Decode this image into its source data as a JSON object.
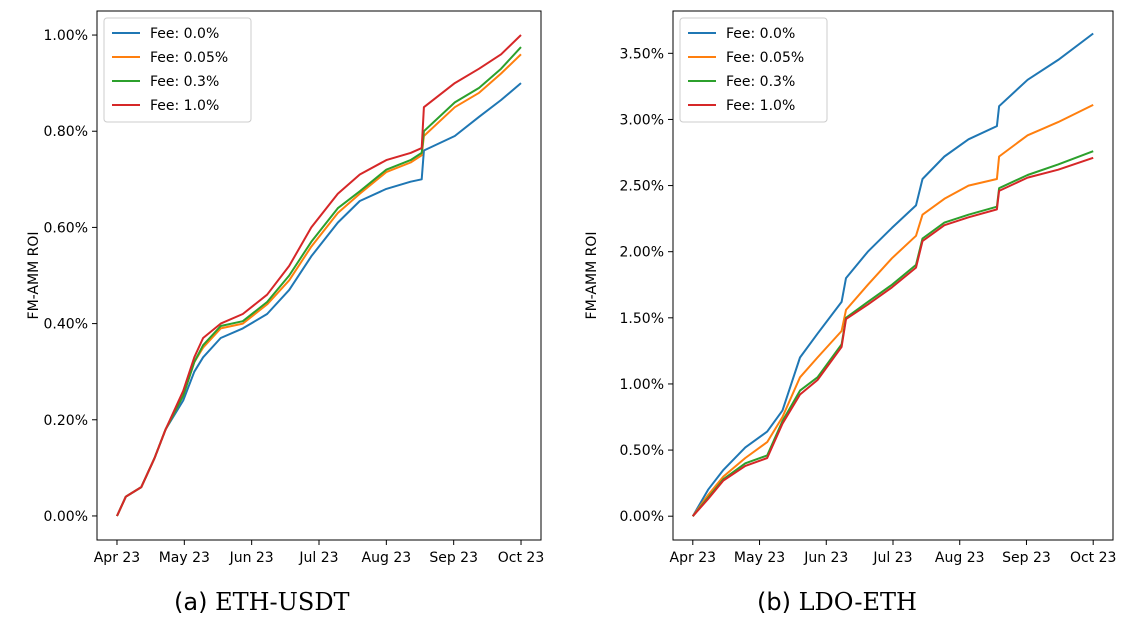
{
  "figure": {
    "captions": [
      {
        "label": "(a)",
        "text": "ETH-USDT"
      },
      {
        "label": "(b)",
        "text": "LDO-ETH"
      }
    ]
  },
  "chart_data": [
    {
      "type": "line",
      "title": "",
      "xlabel": "",
      "ylabel": "FM-AMM ROI",
      "x_ticks": [
        "Apr 23",
        "May 23",
        "Jun 23",
        "Jul 23",
        "Aug 23",
        "Sep 23",
        "Oct 23"
      ],
      "x_range": [
        "2023-04-01",
        "2023-10-01"
      ],
      "y_ticks": [
        "0.00%",
        "0.20%",
        "0.40%",
        "0.60%",
        "0.80%",
        "1.00%"
      ],
      "y_tick_values": [
        0,
        0.2,
        0.4,
        0.6,
        0.8,
        1.0
      ],
      "ylim": [
        -0.05,
        1.05
      ],
      "legend": "top-left",
      "grid": false,
      "x": [
        "2023-04-01",
        "2023-04-05",
        "2023-04-12",
        "2023-04-18",
        "2023-04-23",
        "2023-05-01",
        "2023-05-06",
        "2023-05-10",
        "2023-05-18",
        "2023-05-28",
        "2023-06-08",
        "2023-06-18",
        "2023-06-28",
        "2023-07-10",
        "2023-07-20",
        "2023-08-01",
        "2023-08-12",
        "2023-08-17",
        "2023-08-18",
        "2023-09-01",
        "2023-09-12",
        "2023-09-22",
        "2023-10-01"
      ],
      "series": [
        {
          "name": "Fee: 0.0%",
          "color": "#1f77b4",
          "values": [
            0.0,
            0.04,
            0.06,
            0.12,
            0.18,
            0.24,
            0.3,
            0.33,
            0.37,
            0.39,
            0.42,
            0.47,
            0.54,
            0.61,
            0.655,
            0.68,
            0.695,
            0.7,
            0.76,
            0.79,
            0.83,
            0.865,
            0.9
          ]
        },
        {
          "name": "Fee: 0.05%",
          "color": "#ff7f0e",
          "values": [
            0.0,
            0.04,
            0.06,
            0.12,
            0.18,
            0.25,
            0.32,
            0.35,
            0.39,
            0.4,
            0.44,
            0.49,
            0.56,
            0.63,
            0.67,
            0.715,
            0.735,
            0.75,
            0.79,
            0.85,
            0.88,
            0.92,
            0.96
          ]
        },
        {
          "name": "Fee: 0.3%",
          "color": "#2ca02c",
          "values": [
            0.0,
            0.04,
            0.06,
            0.12,
            0.18,
            0.25,
            0.32,
            0.355,
            0.395,
            0.405,
            0.445,
            0.5,
            0.57,
            0.64,
            0.675,
            0.72,
            0.74,
            0.755,
            0.8,
            0.86,
            0.89,
            0.93,
            0.975
          ]
        },
        {
          "name": "Fee: 1.0%",
          "color": "#d62728",
          "values": [
            0.0,
            0.04,
            0.06,
            0.12,
            0.18,
            0.26,
            0.33,
            0.37,
            0.4,
            0.42,
            0.46,
            0.52,
            0.6,
            0.67,
            0.71,
            0.74,
            0.755,
            0.765,
            0.85,
            0.9,
            0.93,
            0.96,
            1.0
          ]
        }
      ]
    },
    {
      "type": "line",
      "title": "",
      "xlabel": "",
      "ylabel": "FM-AMM ROI",
      "x_ticks": [
        "Apr 23",
        "May 23",
        "Jun 23",
        "Jul 23",
        "Aug 23",
        "Sep 23",
        "Oct 23"
      ],
      "x_range": [
        "2023-04-01",
        "2023-10-01"
      ],
      "y_ticks": [
        "0.00%",
        "0.50%",
        "1.00%",
        "1.50%",
        "2.00%",
        "2.50%",
        "3.00%",
        "3.50%"
      ],
      "y_tick_values": [
        0,
        0.5,
        1.0,
        1.5,
        2.0,
        2.5,
        3.0,
        3.5
      ],
      "ylim": [
        -0.18,
        3.82
      ],
      "legend": "top-left",
      "grid": false,
      "x": [
        "2023-04-01",
        "2023-04-08",
        "2023-04-15",
        "2023-04-25",
        "2023-05-05",
        "2023-05-12",
        "2023-05-20",
        "2023-05-28",
        "2023-06-08",
        "2023-06-10",
        "2023-06-20",
        "2023-07-01",
        "2023-07-12",
        "2023-07-15",
        "2023-07-25",
        "2023-08-05",
        "2023-08-18",
        "2023-08-19",
        "2023-09-01",
        "2023-09-15",
        "2023-10-01"
      ],
      "series": [
        {
          "name": "Fee: 0.0%",
          "color": "#1f77b4",
          "values": [
            0.0,
            0.2,
            0.35,
            0.52,
            0.64,
            0.8,
            1.2,
            1.38,
            1.62,
            1.8,
            2.0,
            2.18,
            2.35,
            2.55,
            2.72,
            2.85,
            2.95,
            3.1,
            3.3,
            3.45,
            3.65
          ]
        },
        {
          "name": "Fee: 0.05%",
          "color": "#ff7f0e",
          "values": [
            0.0,
            0.16,
            0.3,
            0.44,
            0.56,
            0.75,
            1.05,
            1.2,
            1.4,
            1.56,
            1.75,
            1.95,
            2.12,
            2.28,
            2.4,
            2.5,
            2.55,
            2.72,
            2.88,
            2.98,
            3.11
          ]
        },
        {
          "name": "Fee: 0.3%",
          "color": "#2ca02c",
          "values": [
            0.0,
            0.14,
            0.28,
            0.4,
            0.46,
            0.72,
            0.95,
            1.05,
            1.3,
            1.5,
            1.62,
            1.75,
            1.9,
            2.1,
            2.22,
            2.28,
            2.34,
            2.48,
            2.58,
            2.66,
            2.76
          ]
        },
        {
          "name": "Fee: 1.0%",
          "color": "#d62728",
          "values": [
            0.0,
            0.13,
            0.27,
            0.38,
            0.44,
            0.7,
            0.92,
            1.03,
            1.28,
            1.49,
            1.6,
            1.73,
            1.88,
            2.08,
            2.2,
            2.26,
            2.32,
            2.46,
            2.56,
            2.62,
            2.71
          ]
        }
      ]
    }
  ]
}
